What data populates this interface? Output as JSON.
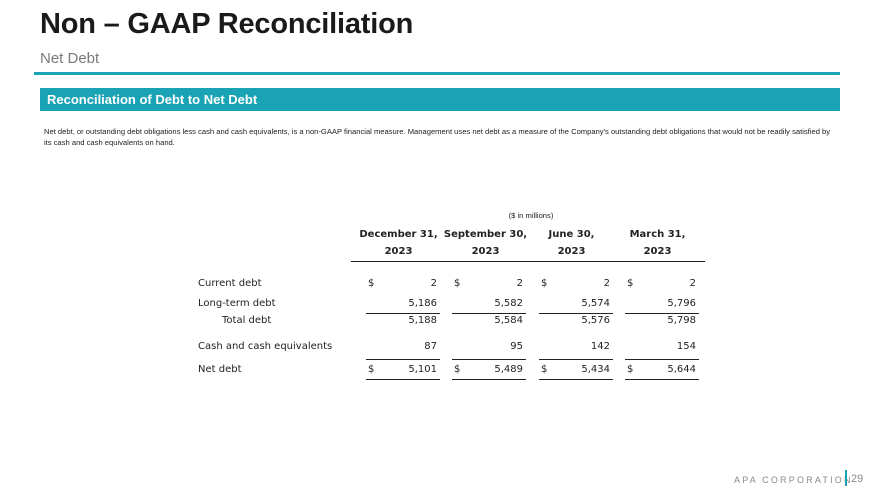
{
  "header": {
    "title": "Non – GAAP Reconciliation",
    "subtitle": "Net Debt"
  },
  "section": {
    "banner": "Reconciliation of Debt to Net Debt",
    "description": "Net debt, or outstanding debt obligations less cash and cash equivalents, is a non-GAAP financial measure. Management uses net debt as a measure of the Company's outstanding debt obligations that would not be readily satisfied by its cash and cash equivalents on hand."
  },
  "table": {
    "units": "($ in millions)",
    "columns": [
      {
        "period": "December 31,",
        "year": "2023"
      },
      {
        "period": "September 30,",
        "year": "2023"
      },
      {
        "period": "June 30,",
        "year": "2023"
      },
      {
        "period": "March 31,",
        "year": "2023"
      }
    ],
    "rows": [
      {
        "label": "Current debt",
        "dollar": "$",
        "values": [
          "2",
          "2",
          "2",
          "2"
        ]
      },
      {
        "label": "Long-term debt",
        "dollar": "",
        "values": [
          "5,186",
          "5,582",
          "5,574",
          "5,796"
        ]
      },
      {
        "label": "Total debt",
        "dollar": "",
        "values": [
          "5,188",
          "5,584",
          "5,576",
          "5,798"
        ]
      },
      {
        "label": "Cash and cash equivalents",
        "dollar": "",
        "values": [
          "87",
          "95",
          "142",
          "154"
        ]
      },
      {
        "label": "Net debt",
        "dollar": "$",
        "values": [
          "5,101",
          "5,489",
          "5,434",
          "5,644"
        ]
      }
    ]
  },
  "footer": {
    "brand": "APA CORPORATION",
    "page_number": "29"
  }
}
